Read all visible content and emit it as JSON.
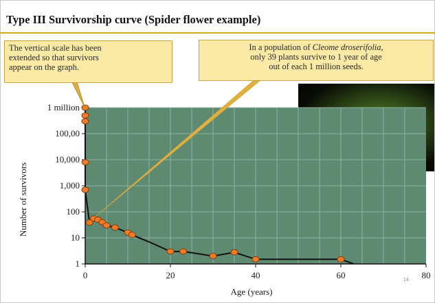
{
  "slide": {
    "title": "Type III Survivorship curve (Spider flower example)",
    "callout_left": [
      "The vertical scale has been",
      "extended so that survivors",
      "appear on the graph."
    ],
    "callout_right_line1_pre": "In a population of ",
    "callout_right_line1_italic": "Cleome droserifolia",
    "callout_right_line1_post": ",",
    "callout_right_line2": "only 39 plants survive to 1 year of age",
    "callout_right_line3": "out of each 1 million seeds.",
    "slide_number": "14"
  },
  "colors": {
    "plot_background": "#5e8a72",
    "gridline": "#8fb3a0",
    "curve": "#111111",
    "marker_fill": "#f07c25",
    "marker_stroke": "#8a3a10",
    "pointer_line": "#e0b040",
    "callout_fill": "#fbe9a6",
    "title_rule": "#d8a51b"
  },
  "chart_data": {
    "type": "line",
    "xlabel": "Age (years)",
    "ylabel": "Number of survivors",
    "xlim": [
      0,
      80
    ],
    "ylim": [
      1,
      1000000
    ],
    "y_scale": "log",
    "x_ticks": [
      "0",
      "20",
      "40",
      "60",
      "80"
    ],
    "y_ticks": [
      "1 million",
      "100,00",
      "10,000",
      "1,000",
      "100",
      "10",
      "1"
    ],
    "grid": true,
    "series": [
      {
        "x": [
          0,
          0,
          0,
          0,
          0,
          1,
          2,
          3,
          4,
          5,
          7,
          10,
          11,
          15,
          20,
          23,
          25,
          30,
          35,
          40,
          45,
          50,
          55,
          60,
          63
        ],
        "y": [
          1000000,
          500000,
          300000,
          8000,
          700,
          39,
          55,
          50,
          40,
          30,
          25,
          16,
          13,
          7,
          3,
          3,
          2.7,
          2,
          2.8,
          1.5,
          1.5,
          1.5,
          1.5,
          1.5,
          1
        ],
        "markers": [
          true,
          true,
          true,
          true,
          true,
          true,
          true,
          true,
          true,
          true,
          true,
          true,
          true,
          false,
          true,
          true,
          false,
          true,
          true,
          true,
          false,
          false,
          false,
          true,
          false
        ]
      }
    ]
  }
}
